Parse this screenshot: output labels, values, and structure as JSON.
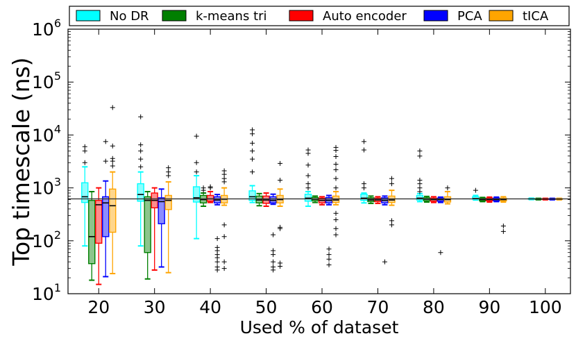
{
  "chart_data": {
    "type": "boxplot",
    "xlabel": "Used % of dataset",
    "ylabel": "Top timescale (ns)",
    "yscale": "log",
    "ylim": [
      10,
      1000000
    ],
    "categories": [
      "20",
      "30",
      "40",
      "50",
      "60",
      "70",
      "80",
      "90",
      "100"
    ],
    "reference_line": 620,
    "y_ticks": [
      {
        "value": 10,
        "base": "10",
        "exp": "1"
      },
      {
        "value": 100,
        "base": "10",
        "exp": "2"
      },
      {
        "value": 1000,
        "base": "10",
        "exp": "3"
      },
      {
        "value": 10000,
        "base": "10",
        "exp": "4"
      },
      {
        "value": 100000,
        "base": "10",
        "exp": "5"
      },
      {
        "value": 1000000,
        "base": "10",
        "exp": "6"
      }
    ],
    "series": [
      {
        "name": "No DR",
        "color": "#00ffff",
        "boxes": [
          {
            "whislo": 80,
            "q1": 530,
            "med": 680,
            "q3": 1250,
            "whishi": 2500,
            "fliers": [
              3000,
              5000,
              6000
            ]
          },
          {
            "whislo": 80,
            "q1": 560,
            "med": 750,
            "q3": 1200,
            "whishi": 2000,
            "fliers": [
              2500,
              3500,
              5000,
              6500,
              22000
            ]
          },
          {
            "whislo": 110,
            "q1": 540,
            "med": 650,
            "q3": 1050,
            "whishi": 1700,
            "fliers": [
              2000,
              3000,
              9500
            ]
          },
          {
            "whislo": 530,
            "q1": 580,
            "med": 680,
            "q3": 880,
            "whishi": 1100,
            "fliers": [
              2000,
              3500,
              5000,
              7000,
              10500,
              12500
            ]
          },
          {
            "whislo": 450,
            "q1": 560,
            "med": 640,
            "q3": 760,
            "whishi": 850,
            "fliers": [
              1000,
              1200,
              1700,
              2700,
              4500,
              5200
            ]
          },
          {
            "whislo": 520,
            "q1": 580,
            "med": 640,
            "q3": 760,
            "whishi": 800,
            "fliers": [
              1000,
              1200,
              5200,
              7500
            ]
          },
          {
            "whislo": 550,
            "q1": 590,
            "med": 640,
            "q3": 720,
            "whishi": 780,
            "fliers": [
              850,
              1000,
              1200,
              1400,
              4000,
              5000
            ]
          },
          {
            "whislo": 590,
            "q1": 610,
            "med": 630,
            "q3": 680,
            "whishi": 720,
            "fliers": [
              900
            ]
          },
          {
            "whislo": 600,
            "q1": 610,
            "med": 620,
            "q3": 630,
            "whishi": 640,
            "fliers": []
          }
        ]
      },
      {
        "name": "k-means tri",
        "color": "#007f00",
        "boxes": [
          {
            "whislo": 18,
            "q1": 37,
            "med": 120,
            "q3": 580,
            "whishi": 850,
            "fliers": []
          },
          {
            "whislo": 19,
            "q1": 60,
            "med": 580,
            "q3": 680,
            "whishi": 850,
            "fliers": []
          },
          {
            "whislo": 450,
            "q1": 520,
            "med": 600,
            "q3": 720,
            "whishi": 800,
            "fliers": [
              900,
              1000
            ]
          },
          {
            "whislo": 460,
            "q1": 520,
            "med": 590,
            "q3": 700,
            "whishi": 780,
            "fliers": []
          },
          {
            "whislo": 530,
            "q1": 570,
            "med": 610,
            "q3": 660,
            "whishi": 700,
            "fliers": []
          },
          {
            "whislo": 510,
            "q1": 550,
            "med": 590,
            "q3": 650,
            "whishi": 700,
            "fliers": []
          },
          {
            "whislo": 540,
            "q1": 570,
            "med": 610,
            "q3": 650,
            "whishi": 690,
            "fliers": []
          },
          {
            "whislo": 550,
            "q1": 570,
            "med": 600,
            "q3": 640,
            "whishi": 660,
            "fliers": []
          },
          {
            "whislo": 595,
            "q1": 605,
            "med": 615,
            "q3": 625,
            "whishi": 635,
            "fliers": []
          }
        ]
      },
      {
        "name": "Auto encoder",
        "color": "#ff0000",
        "boxes": [
          {
            "whislo": 15,
            "q1": 90,
            "med": 480,
            "q3": 580,
            "whishi": 1000,
            "fliers": []
          },
          {
            "whislo": 28,
            "q1": 420,
            "med": 580,
            "q3": 800,
            "whishi": 1000,
            "fliers": []
          },
          {
            "whislo": 530,
            "q1": 560,
            "med": 620,
            "q3": 720,
            "whishi": 850,
            "fliers": [
              1000,
              1050
            ]
          },
          {
            "whislo": 450,
            "q1": 510,
            "med": 590,
            "q3": 700,
            "whishi": 800,
            "fliers": []
          },
          {
            "whislo": 480,
            "q1": 520,
            "med": 580,
            "q3": 640,
            "whishi": 680,
            "fliers": []
          },
          {
            "whislo": 510,
            "q1": 550,
            "med": 590,
            "q3": 640,
            "whishi": 680,
            "fliers": []
          },
          {
            "whislo": 530,
            "q1": 560,
            "med": 600,
            "q3": 640,
            "whishi": 680,
            "fliers": []
          },
          {
            "whislo": 540,
            "q1": 570,
            "med": 600,
            "q3": 640,
            "whishi": 670,
            "fliers": []
          },
          {
            "whislo": 595,
            "q1": 605,
            "med": 615,
            "q3": 625,
            "whishi": 635,
            "fliers": []
          }
        ]
      },
      {
        "name": "PCA",
        "color": "#0000ff",
        "boxes": [
          {
            "whislo": 21,
            "q1": 120,
            "med": 520,
            "q3": 680,
            "whishi": 1350,
            "fliers": [
              3200,
              7500
            ]
          },
          {
            "whislo": 32,
            "q1": 210,
            "med": 550,
            "q3": 650,
            "whishi": 950,
            "fliers": []
          },
          {
            "whislo": 480,
            "q1": 520,
            "med": 590,
            "q3": 680,
            "whishi": 750,
            "fliers": [
              28,
              32,
              40,
              48,
              55,
              65,
              75,
              110
            ]
          },
          {
            "whislo": 490,
            "q1": 520,
            "med": 580,
            "q3": 680,
            "whishi": 760,
            "fliers": [
              28,
              32,
              40,
              55,
              65,
              130
            ]
          },
          {
            "whislo": 480,
            "q1": 520,
            "med": 580,
            "q3": 660,
            "whishi": 720,
            "fliers": [
              35,
              45,
              55,
              70
            ]
          },
          {
            "whislo": 480,
            "q1": 520,
            "med": 580,
            "q3": 650,
            "whishi": 700,
            "fliers": [
              40
            ]
          },
          {
            "whislo": 530,
            "q1": 560,
            "med": 600,
            "q3": 640,
            "whishi": 670,
            "fliers": [
              60
            ]
          },
          {
            "whislo": 550,
            "q1": 570,
            "med": 600,
            "q3": 640,
            "whishi": 670,
            "fliers": []
          },
          {
            "whislo": 595,
            "q1": 605,
            "med": 615,
            "q3": 625,
            "whishi": 635,
            "fliers": []
          }
        ]
      },
      {
        "name": "tICA",
        "color": "#ffa500",
        "boxes": [
          {
            "whislo": 24,
            "q1": 145,
            "med": 460,
            "q3": 950,
            "whishi": 2000,
            "fliers": [
              2600,
              3200,
              3600,
              6200,
              33000
            ]
          },
          {
            "whislo": 25,
            "q1": 390,
            "med": 580,
            "q3": 720,
            "whishi": 1300,
            "fliers": [
              1700,
              2000,
              2400
            ]
          },
          {
            "whislo": 470,
            "q1": 520,
            "med": 610,
            "q3": 720,
            "whishi": 1000,
            "fliers": [
              30,
              40,
              120,
              200,
              1300,
              1500,
              1800,
              2100
            ]
          },
          {
            "whislo": 450,
            "q1": 520,
            "med": 600,
            "q3": 720,
            "whishi": 950,
            "fliers": [
              33,
              38,
              170,
              180,
              1400,
              2900
            ]
          },
          {
            "whislo": 480,
            "q1": 530,
            "med": 590,
            "q3": 700,
            "whishi": 850,
            "fliers": [
              130,
              170,
              250,
              330,
              1000,
              1500,
              2200,
              2800,
              3900,
              5100,
              5800
            ]
          },
          {
            "whislo": 470,
            "q1": 530,
            "med": 590,
            "q3": 700,
            "whishi": 900,
            "fliers": [
              200,
              240,
              1200,
              1500
            ]
          },
          {
            "whislo": 500,
            "q1": 540,
            "med": 600,
            "q3": 680,
            "whishi": 850,
            "fliers": [
              1000
            ]
          },
          {
            "whislo": 540,
            "q1": 570,
            "med": 600,
            "q3": 640,
            "whishi": 680,
            "fliers": [
              150,
              190
            ]
          },
          {
            "whislo": 595,
            "q1": 605,
            "med": 615,
            "q3": 625,
            "whishi": 635,
            "fliers": []
          }
        ]
      }
    ]
  }
}
